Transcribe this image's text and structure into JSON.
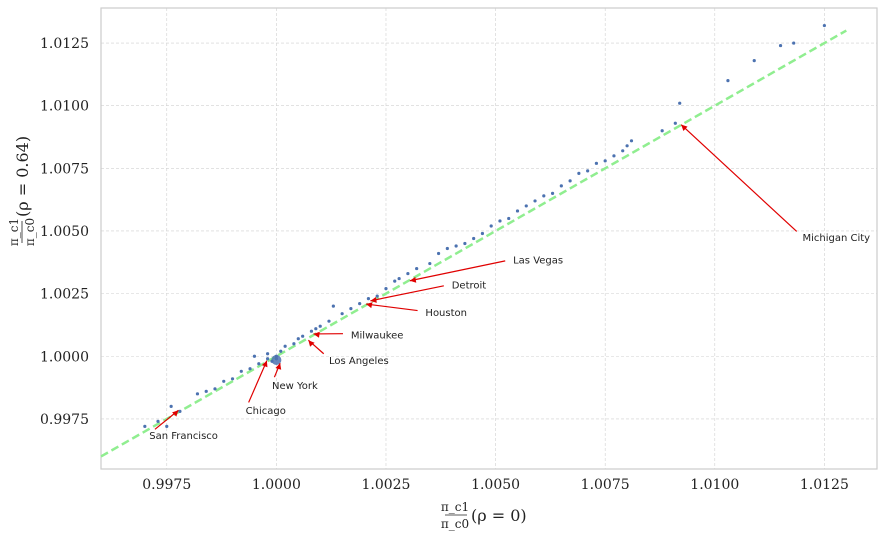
{
  "chart_data": {
    "type": "scatter",
    "xlabel_num": "π_c1",
    "xlabel_den": "π_c0",
    "xlabel_suffix": "(ρ = 0)",
    "ylabel_num": "π_c1",
    "ylabel_den": "π_c0",
    "ylabel_suffix": "(ρ = 0.64)",
    "xlim": [
      0.996,
      1.0137
    ],
    "ylim": [
      0.9955,
      1.0139
    ],
    "x_ticks": [
      "0.9975",
      "1.0000",
      "1.0025",
      "1.0050",
      "1.0075",
      "1.0100",
      "1.0125"
    ],
    "y_ticks": [
      "0.9975",
      "1.0000",
      "1.0025",
      "1.0050",
      "1.0075",
      "1.0100",
      "1.0125"
    ],
    "grid": true,
    "fit_line": {
      "color": "#90ee90",
      "x": [
        0.996,
        1.013
      ],
      "y": [
        0.996,
        1.013
      ]
    },
    "point_color": "#4c72b0",
    "points": [
      [
        0.997,
        0.9972
      ],
      [
        0.9975,
        0.9972
      ],
      [
        0.9973,
        0.9974
      ],
      [
        0.9976,
        0.998
      ],
      [
        0.9978,
        0.9978
      ],
      [
        0.9982,
        0.9985
      ],
      [
        0.9984,
        0.9986
      ],
      [
        0.9986,
        0.9987
      ],
      [
        0.9988,
        0.999
      ],
      [
        0.999,
        0.9991
      ],
      [
        0.9992,
        0.9994
      ],
      [
        0.9994,
        0.9995
      ],
      [
        0.9995,
        1.0
      ],
      [
        0.9996,
        0.9997
      ],
      [
        0.9998,
        0.9999
      ],
      [
        0.9999,
        0.9998
      ],
      [
        1.0,
        0.9999
      ],
      [
        1.0,
        1.0
      ],
      [
        0.9998,
        1.0001
      ],
      [
        1.0001,
        1.0002
      ],
      [
        1.0002,
        1.0004
      ],
      [
        1.0004,
        1.0005
      ],
      [
        1.0005,
        1.0007
      ],
      [
        1.0006,
        1.0008
      ],
      [
        1.0008,
        1.001
      ],
      [
        1.0009,
        1.0011
      ],
      [
        1.001,
        1.0012
      ],
      [
        1.0012,
        1.0014
      ],
      [
        1.0013,
        1.002
      ],
      [
        1.0015,
        1.0017
      ],
      [
        1.0017,
        1.0019
      ],
      [
        1.0019,
        1.0021
      ],
      [
        1.0021,
        1.0023
      ],
      [
        1.0023,
        1.0024
      ],
      [
        1.0025,
        1.0027
      ],
      [
        1.0027,
        1.003
      ],
      [
        1.0028,
        1.0031
      ],
      [
        1.003,
        1.0033
      ],
      [
        1.0032,
        1.0035
      ],
      [
        1.0035,
        1.0037
      ],
      [
        1.0037,
        1.0041
      ],
      [
        1.0039,
        1.0043
      ],
      [
        1.0041,
        1.0044
      ],
      [
        1.0043,
        1.0045
      ],
      [
        1.0045,
        1.0047
      ],
      [
        1.0047,
        1.0049
      ],
      [
        1.0049,
        1.0052
      ],
      [
        1.0051,
        1.0054
      ],
      [
        1.0053,
        1.0055
      ],
      [
        1.0055,
        1.0058
      ],
      [
        1.0057,
        1.006
      ],
      [
        1.0059,
        1.0062
      ],
      [
        1.0061,
        1.0064
      ],
      [
        1.0063,
        1.0065
      ],
      [
        1.0065,
        1.0068
      ],
      [
        1.0067,
        1.007
      ],
      [
        1.0069,
        1.0073
      ],
      [
        1.0071,
        1.0074
      ],
      [
        1.0073,
        1.0077
      ],
      [
        1.0075,
        1.0078
      ],
      [
        1.0077,
        1.008
      ],
      [
        1.0079,
        1.0082
      ],
      [
        1.008,
        1.0084
      ],
      [
        1.0081,
        1.0086
      ],
      [
        1.0088,
        1.009
      ],
      [
        1.0091,
        1.0093
      ],
      [
        1.0092,
        1.0101
      ],
      [
        1.0103,
        1.011
      ],
      [
        1.0109,
        1.0118
      ],
      [
        1.0115,
        1.0124
      ],
      [
        1.0118,
        1.0125
      ],
      [
        1.0125,
        1.0132
      ]
    ],
    "annotations": [
      {
        "label": "Michigan City",
        "point": [
          1.0092,
          1.0093
        ],
        "text": [
          1.012,
          1.0046
        ]
      },
      {
        "label": "Las Vegas",
        "point": [
          1.003,
          1.003
        ],
        "text": [
          1.0054,
          1.0037
        ]
      },
      {
        "label": "Detroit",
        "point": [
          1.0021,
          1.0022
        ],
        "text": [
          1.004,
          1.0027
        ]
      },
      {
        "label": "Houston",
        "point": [
          1.002,
          1.0021
        ],
        "text": [
          1.0034,
          1.0016
        ]
      },
      {
        "label": "Milwaukee",
        "point": [
          1.0008,
          1.0009
        ],
        "text": [
          1.0017,
          1.0007
        ]
      },
      {
        "label": "Los Angeles",
        "point": [
          1.0007,
          1.0007
        ],
        "text": [
          1.0012,
          0.9997
        ]
      },
      {
        "label": "New York",
        "point": [
          1.0001,
          0.9998
        ],
        "text": [
          0.9999,
          0.9987
        ]
      },
      {
        "label": "Chicago",
        "point": [
          0.9998,
          0.9999
        ],
        "text": [
          0.9993,
          0.9977
        ]
      },
      {
        "label": "San Francisco",
        "point": [
          0.9978,
          0.9979
        ],
        "text": [
          0.9971,
          0.9967
        ]
      }
    ]
  }
}
